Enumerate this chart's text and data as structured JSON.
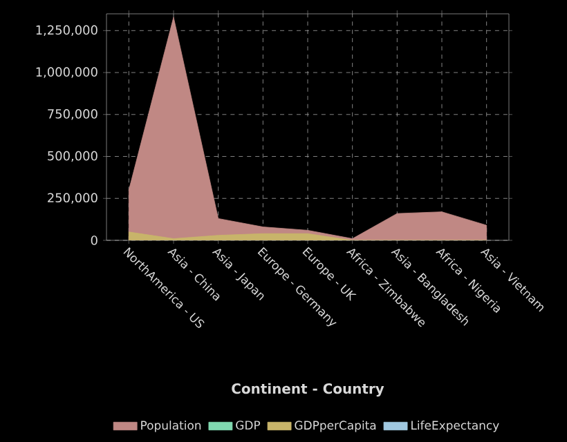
{
  "chart_data": {
    "type": "area",
    "xlabel": "Continent - Country",
    "categories": [
      "NorthAmerica - US",
      "Asia - China",
      "Asia - Japan",
      "Europe - Germany",
      "Europe - UK",
      "Africa - Zimbabwe",
      "Asia - Bangladesh",
      "Africa - Nigeria",
      "Asia - Vietnam"
    ],
    "series": [
      {
        "name": "Population",
        "color": "#c08884",
        "values": [
          300000,
          1330000,
          130000,
          80000,
          60000,
          10000,
          160000,
          170000,
          90000
        ]
      },
      {
        "name": "GDP",
        "color": "#80d8b0",
        "values": [
          null,
          null,
          null,
          null,
          null,
          null,
          null,
          null,
          null
        ]
      },
      {
        "name": "GDPperCapita",
        "color": "#c8b46a",
        "values": [
          50000,
          10000,
          30000,
          40000,
          40000,
          0,
          0,
          0,
          0
        ]
      },
      {
        "name": "LifeExpectancy",
        "color": "#a0c8e0",
        "values": [
          null,
          null,
          null,
          null,
          null,
          null,
          null,
          null,
          null
        ]
      }
    ],
    "ylim": [
      0,
      1350000
    ],
    "yticks": [
      {
        "value": 0,
        "label": "0"
      },
      {
        "value": 250000,
        "label": "250,000"
      },
      {
        "value": 500000,
        "label": "500,000"
      },
      {
        "value": 750000,
        "label": "750,000"
      },
      {
        "value": 1000000,
        "label": "1,000,000"
      },
      {
        "value": 1250000,
        "label": "1,250,000"
      }
    ],
    "grid": true,
    "legend": "bottom"
  }
}
